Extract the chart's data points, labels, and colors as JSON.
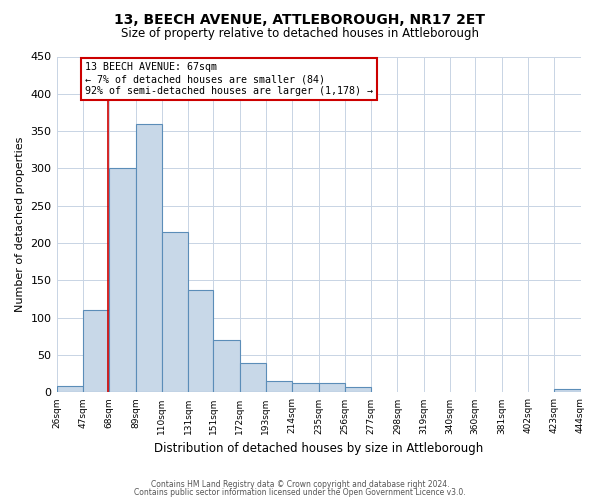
{
  "title": "13, BEECH AVENUE, ATTLEBOROUGH, NR17 2ET",
  "subtitle": "Size of property relative to detached houses in Attleborough",
  "xlabel": "Distribution of detached houses by size in Attleborough",
  "ylabel": "Number of detached properties",
  "bin_edges": [
    26,
    47,
    68,
    89,
    110,
    131,
    151,
    172,
    193,
    214,
    235,
    256,
    277,
    298,
    319,
    340,
    360,
    381,
    402,
    423,
    444
  ],
  "bin_labels": [
    "26sqm",
    "47sqm",
    "68sqm",
    "89sqm",
    "110sqm",
    "131sqm",
    "151sqm",
    "172sqm",
    "193sqm",
    "214sqm",
    "235sqm",
    "256sqm",
    "277sqm",
    "298sqm",
    "319sqm",
    "340sqm",
    "360sqm",
    "381sqm",
    "402sqm",
    "423sqm",
    "444sqm"
  ],
  "counts": [
    8,
    110,
    300,
    360,
    215,
    137,
    70,
    40,
    15,
    13,
    12,
    7,
    0,
    0,
    0,
    0,
    0,
    0,
    0,
    4
  ],
  "bar_color": "#c8d8e8",
  "bar_edge_color": "#5b8db8",
  "marker_value": 67,
  "marker_color": "#cc0000",
  "annotation_line1": "13 BEECH AVENUE: 67sqm",
  "annotation_line2": "← 7% of detached houses are smaller (84)",
  "annotation_line3": "92% of semi-detached houses are larger (1,178) →",
  "annotation_box_color": "#cc0000",
  "ylim": [
    0,
    450
  ],
  "yticks": [
    0,
    50,
    100,
    150,
    200,
    250,
    300,
    350,
    400,
    450
  ],
  "grid_color": "#c8d4e4",
  "footnote1": "Contains HM Land Registry data © Crown copyright and database right 2024.",
  "footnote2": "Contains public sector information licensed under the Open Government Licence v3.0."
}
